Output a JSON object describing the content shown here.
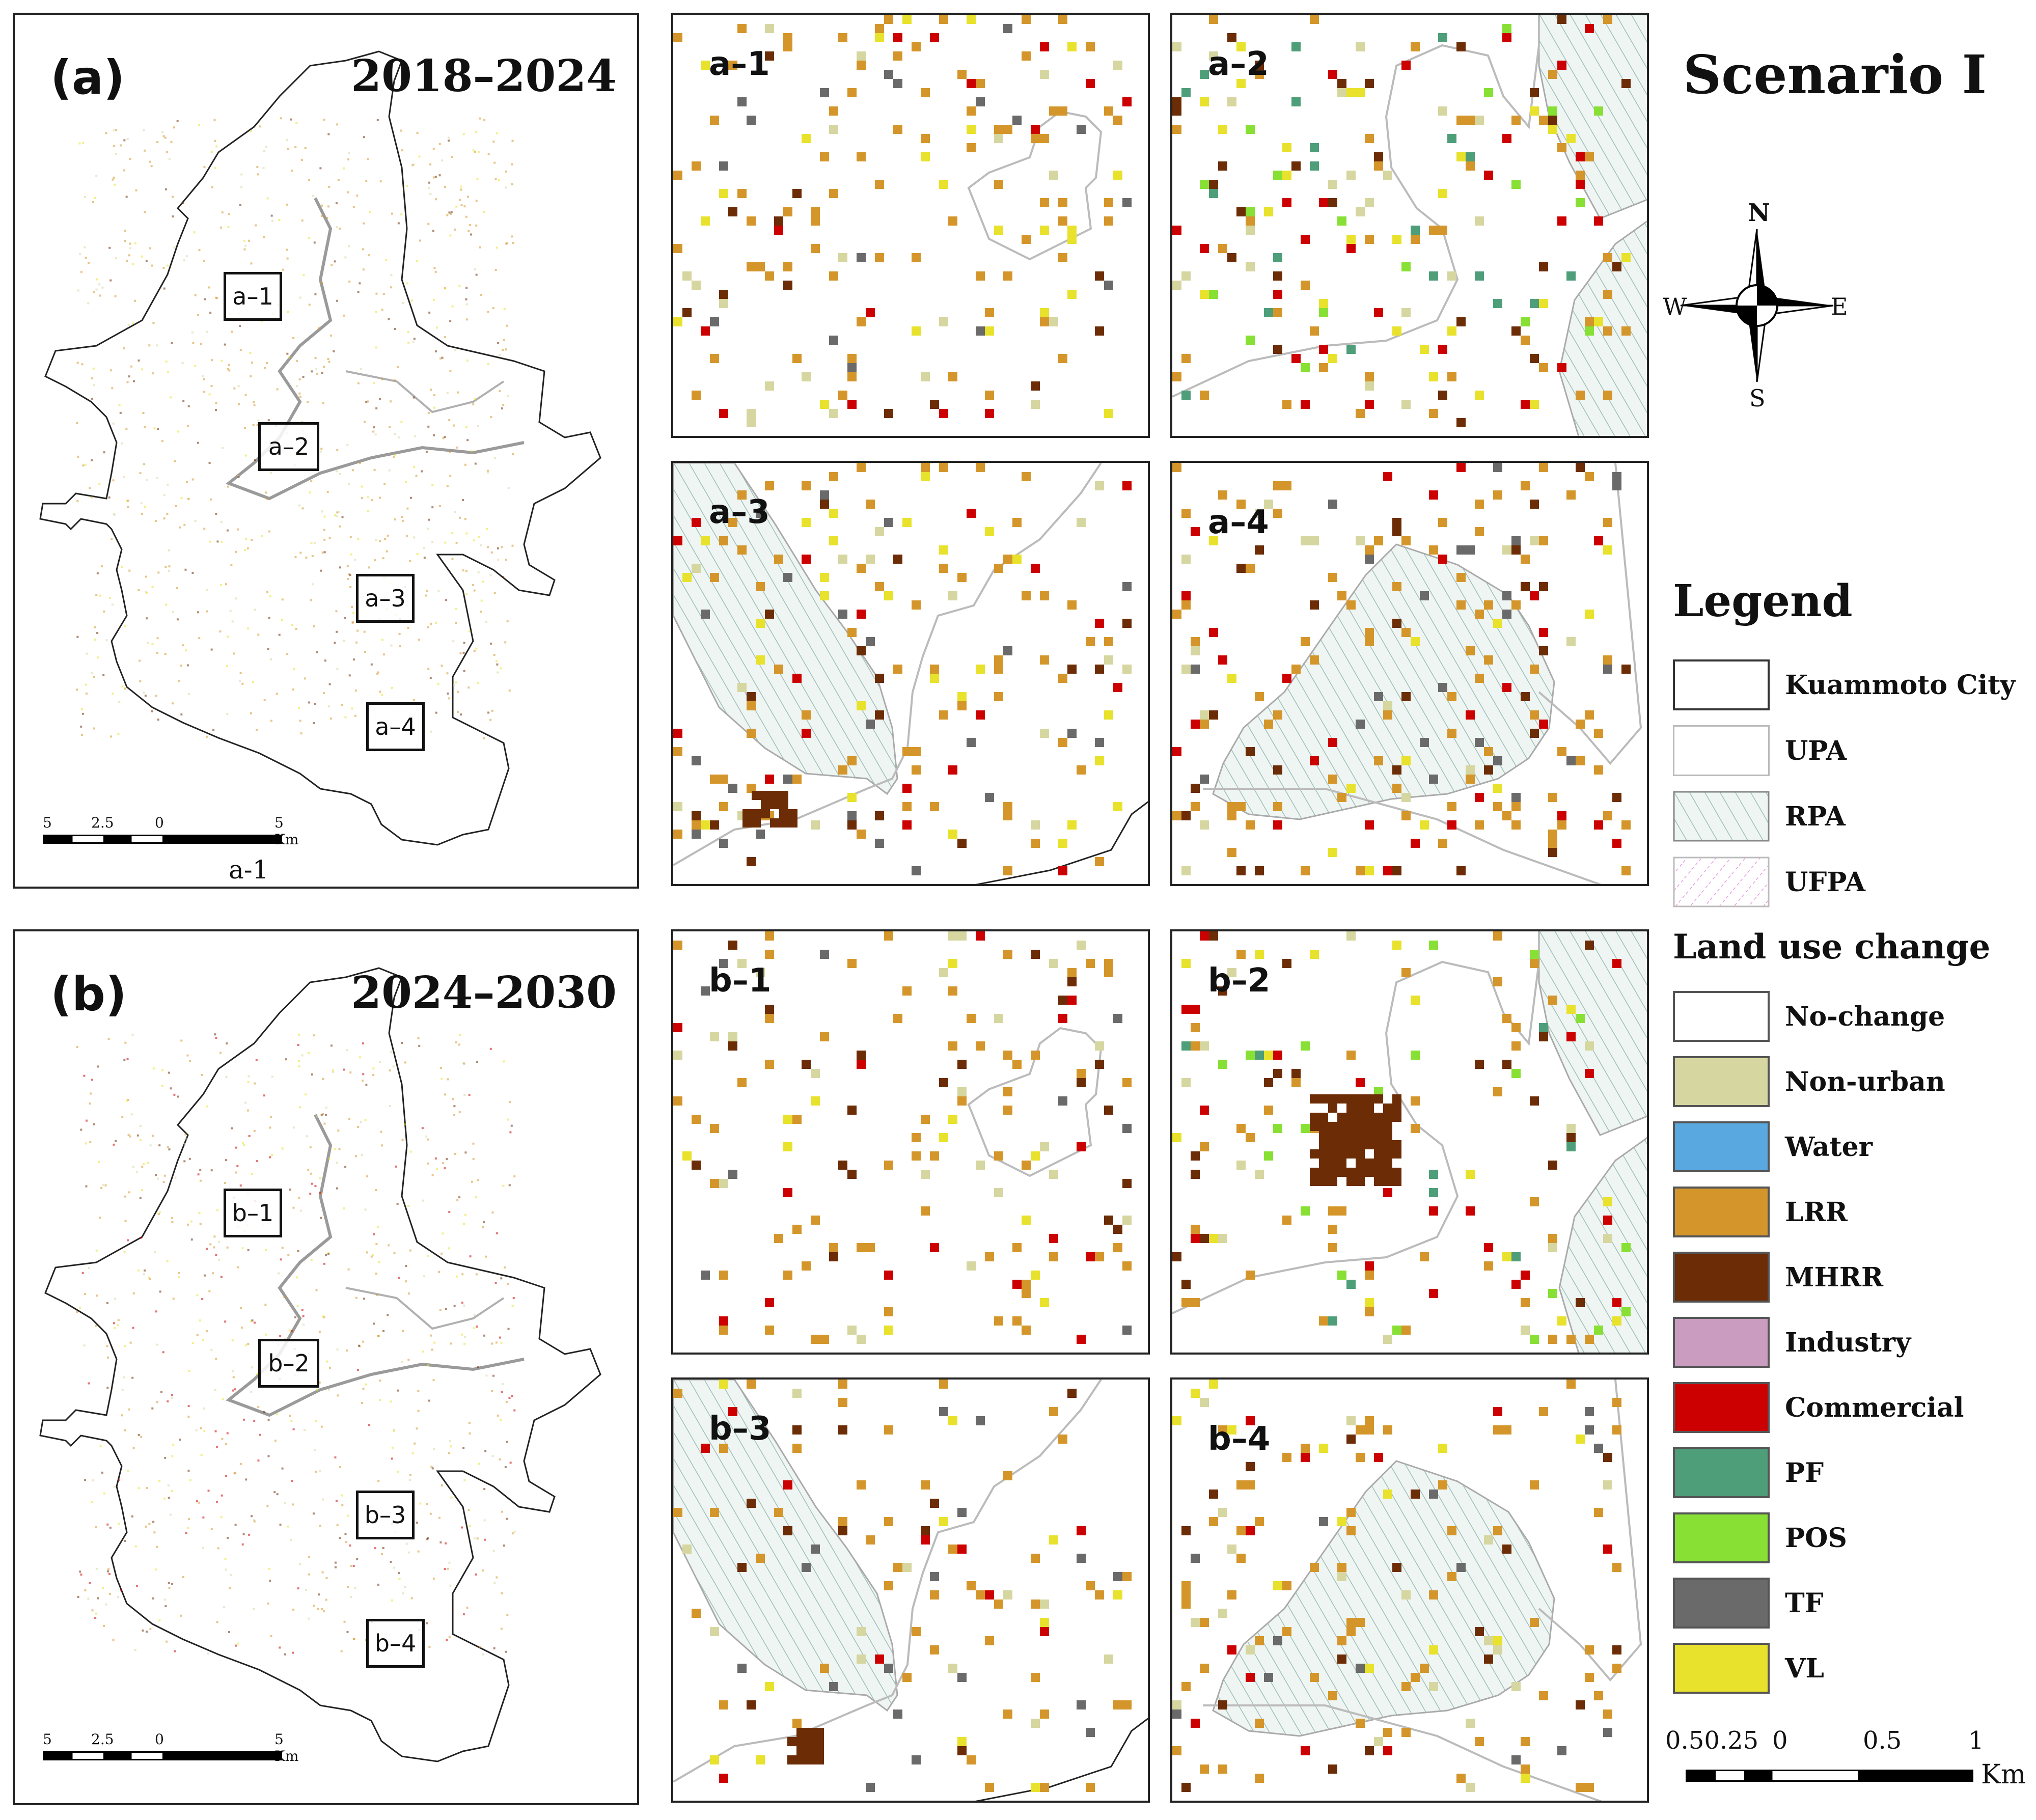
{
  "scenario_title": "Scenario Ⅰ",
  "panel_a": {
    "label": "(a)",
    "period": "2018–2024",
    "insets": [
      "a–1",
      "a–2",
      "a–3",
      "a–4"
    ],
    "caption_below": "a-1"
  },
  "panel_b": {
    "label": "(b)",
    "period": "2024–2030",
    "insets": [
      "b–1",
      "b–2",
      "b–3",
      "b–4"
    ]
  },
  "overview_scalebar": {
    "ticks": [
      "5",
      "2.5",
      "0",
      "5 Km"
    ]
  },
  "zoom_labels": {
    "a1": "a–1",
    "a2": "a–2",
    "a3": "a–3",
    "a4": "a–4",
    "b1": "b–1",
    "b2": "b–2",
    "b3": "b–3",
    "b4": "b–4"
  },
  "compass": {
    "n": "N",
    "s": "S",
    "e": "E",
    "w": "W"
  },
  "legend": {
    "title": "Legend",
    "zones": [
      {
        "label": "Kuammoto City",
        "swatch": "outline"
      },
      {
        "label": "UPA",
        "swatch": "light-outline"
      },
      {
        "label": "RPA",
        "swatch": "hatch-green"
      },
      {
        "label": "UFPA",
        "swatch": "hatch-pink"
      }
    ],
    "change_title": "Land use change",
    "classes": [
      {
        "label": "No-change",
        "color": "#ffffff"
      },
      {
        "label": "Non-urban",
        "color": "#d6d6a0"
      },
      {
        "label": "Water",
        "color": "#5aa8e0"
      },
      {
        "label": "LRR",
        "color": "#d4962a"
      },
      {
        "label": "MHRR",
        "color": "#6b2c06"
      },
      {
        "label": "Industry",
        "color": "#c99cc0"
      },
      {
        "label": "Commercial",
        "color": "#cc0000"
      },
      {
        "label": "PF",
        "color": "#4e9e7a"
      },
      {
        "label": "POS",
        "color": "#88e035"
      },
      {
        "label": "TF",
        "color": "#6a6a6a"
      },
      {
        "label": "VL",
        "color": "#e8e22c"
      }
    ]
  },
  "km_scalebar": {
    "ticks": [
      "0.50.25",
      "0",
      "0.5",
      "1"
    ],
    "unit": "Km"
  }
}
